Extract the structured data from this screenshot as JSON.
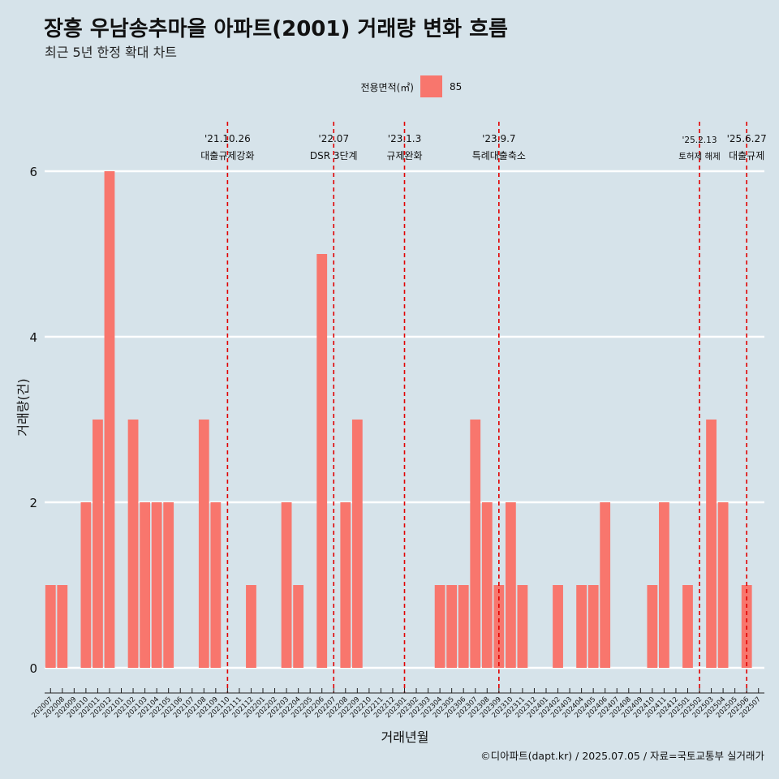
{
  "title": "장흥 우남송추마을 아파트(2001) 거래량 변화 흐름",
  "subtitle": "최근 5년 한정 확대 차트",
  "caption": "©디아파트(dapt.kr) / 2025.07.05 / 자료=국토교통부 실거래가",
  "colors": {
    "background": "#d6e3ea",
    "bar": "#f8766d",
    "event_line": "#e10000",
    "grid": "#ffffff"
  },
  "chart_data": {
    "type": "bar",
    "xlabel": "거래년월",
    "ylabel": "거래량(건)",
    "ylim": [
      0,
      6
    ],
    "yticks": [
      0,
      2,
      4,
      6
    ],
    "grid": "horizontal",
    "legend": {
      "title": "전용면적(㎡)",
      "position": "top",
      "entries": [
        {
          "label": "85",
          "color": "#f8766d"
        }
      ]
    },
    "categories": [
      "202007",
      "202008",
      "202009",
      "202010",
      "202011",
      "202012",
      "202101",
      "202102",
      "202103",
      "202104",
      "202105",
      "202106",
      "202107",
      "202108",
      "202109",
      "202110",
      "202111",
      "202112",
      "202201",
      "202202",
      "202203",
      "202204",
      "202205",
      "202206",
      "202207",
      "202208",
      "202209",
      "202210",
      "202211",
      "202212",
      "202301",
      "202302",
      "202303",
      "202304",
      "202305",
      "202306",
      "202307",
      "202308",
      "202309",
      "202310",
      "202311",
      "202312",
      "202401",
      "202402",
      "202403",
      "202404",
      "202405",
      "202406",
      "202407",
      "202408",
      "202409",
      "202410",
      "202411",
      "202412",
      "202501",
      "202502",
      "202503",
      "202504",
      "202505",
      "202506",
      "202507"
    ],
    "series": [
      {
        "name": "85",
        "values": [
          1,
          1,
          0,
          2,
          3,
          6,
          0,
          3,
          2,
          2,
          2,
          0,
          0,
          3,
          2,
          0,
          0,
          1,
          0,
          0,
          2,
          1,
          0,
          5,
          0,
          2,
          3,
          0,
          0,
          0,
          0,
          0,
          0,
          1,
          1,
          1,
          3,
          2,
          1,
          2,
          1,
          0,
          0,
          1,
          0,
          1,
          1,
          2,
          0,
          0,
          0,
          1,
          2,
          0,
          1,
          0,
          3,
          2,
          0,
          1,
          0
        ]
      }
    ],
    "events": [
      {
        "x": "202110",
        "date": "'21.10.26",
        "label": "대출규제강화"
      },
      {
        "x": "202207",
        "date": "'22.07",
        "label": "DSR 3단계"
      },
      {
        "x": "202301",
        "date": "'23.1.3",
        "label": "규제완화"
      },
      {
        "x": "202309",
        "date": "'23.9.7",
        "label": "특례대출축소"
      },
      {
        "x": "202502",
        "date": "'25.2.13",
        "label": "토허제 해제"
      },
      {
        "x": "202506",
        "date": "'25.6.27",
        "label": "대출규제"
      }
    ]
  }
}
